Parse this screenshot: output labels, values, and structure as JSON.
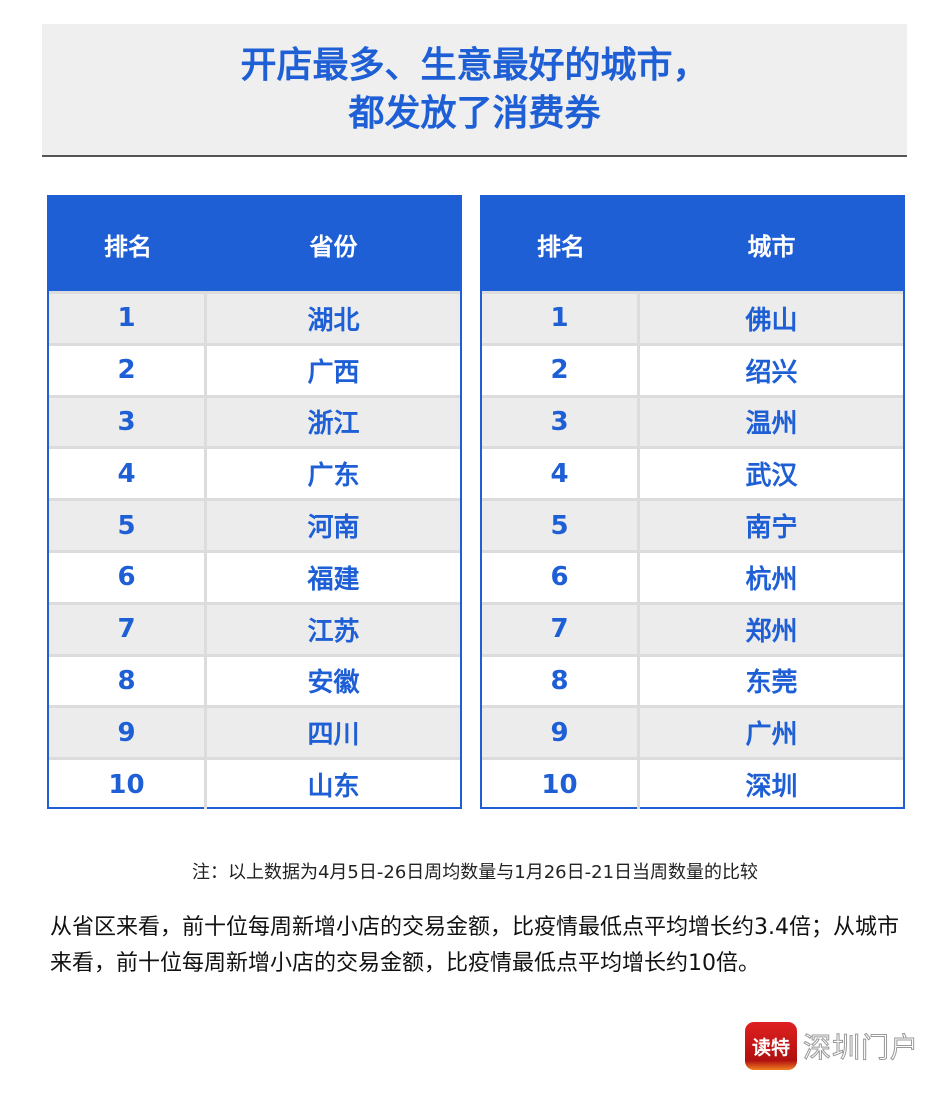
{
  "title": {
    "line1": "开店最多、生意最好的城市，",
    "line2": "都发放了消费券"
  },
  "province_table": {
    "headers": [
      "排名",
      "省份"
    ],
    "rows": [
      [
        "1",
        "湖北"
      ],
      [
        "2",
        "广西"
      ],
      [
        "3",
        "浙江"
      ],
      [
        "4",
        "广东"
      ],
      [
        "5",
        "河南"
      ],
      [
        "6",
        "福建"
      ],
      [
        "7",
        "江苏"
      ],
      [
        "8",
        "安徽"
      ],
      [
        "9",
        "四川"
      ],
      [
        "10",
        "山东"
      ]
    ]
  },
  "city_table": {
    "headers": [
      "排名",
      "城市"
    ],
    "rows": [
      [
        "1",
        "佛山"
      ],
      [
        "2",
        "绍兴"
      ],
      [
        "3",
        "温州"
      ],
      [
        "4",
        "武汉"
      ],
      [
        "5",
        "南宁"
      ],
      [
        "6",
        "杭州"
      ],
      [
        "7",
        "郑州"
      ],
      [
        "8",
        "东莞"
      ],
      [
        "9",
        "广州"
      ],
      [
        "10",
        "深圳"
      ]
    ]
  },
  "note": "注：以上数据为4月5日-26日周均数量与1月26日-21日当周数量的比较",
  "paragraph": "从省区来看，前十位每周新增小店的交易金额，比疫情最低点平均增长约3.4倍；从城市来看，前十位每周新增小店的交易金额，比疫情最低点平均增长约10倍。",
  "logo": {
    "badge": "读特",
    "name": "深圳门户"
  },
  "colors": {
    "accent": "#1f5fd6"
  }
}
